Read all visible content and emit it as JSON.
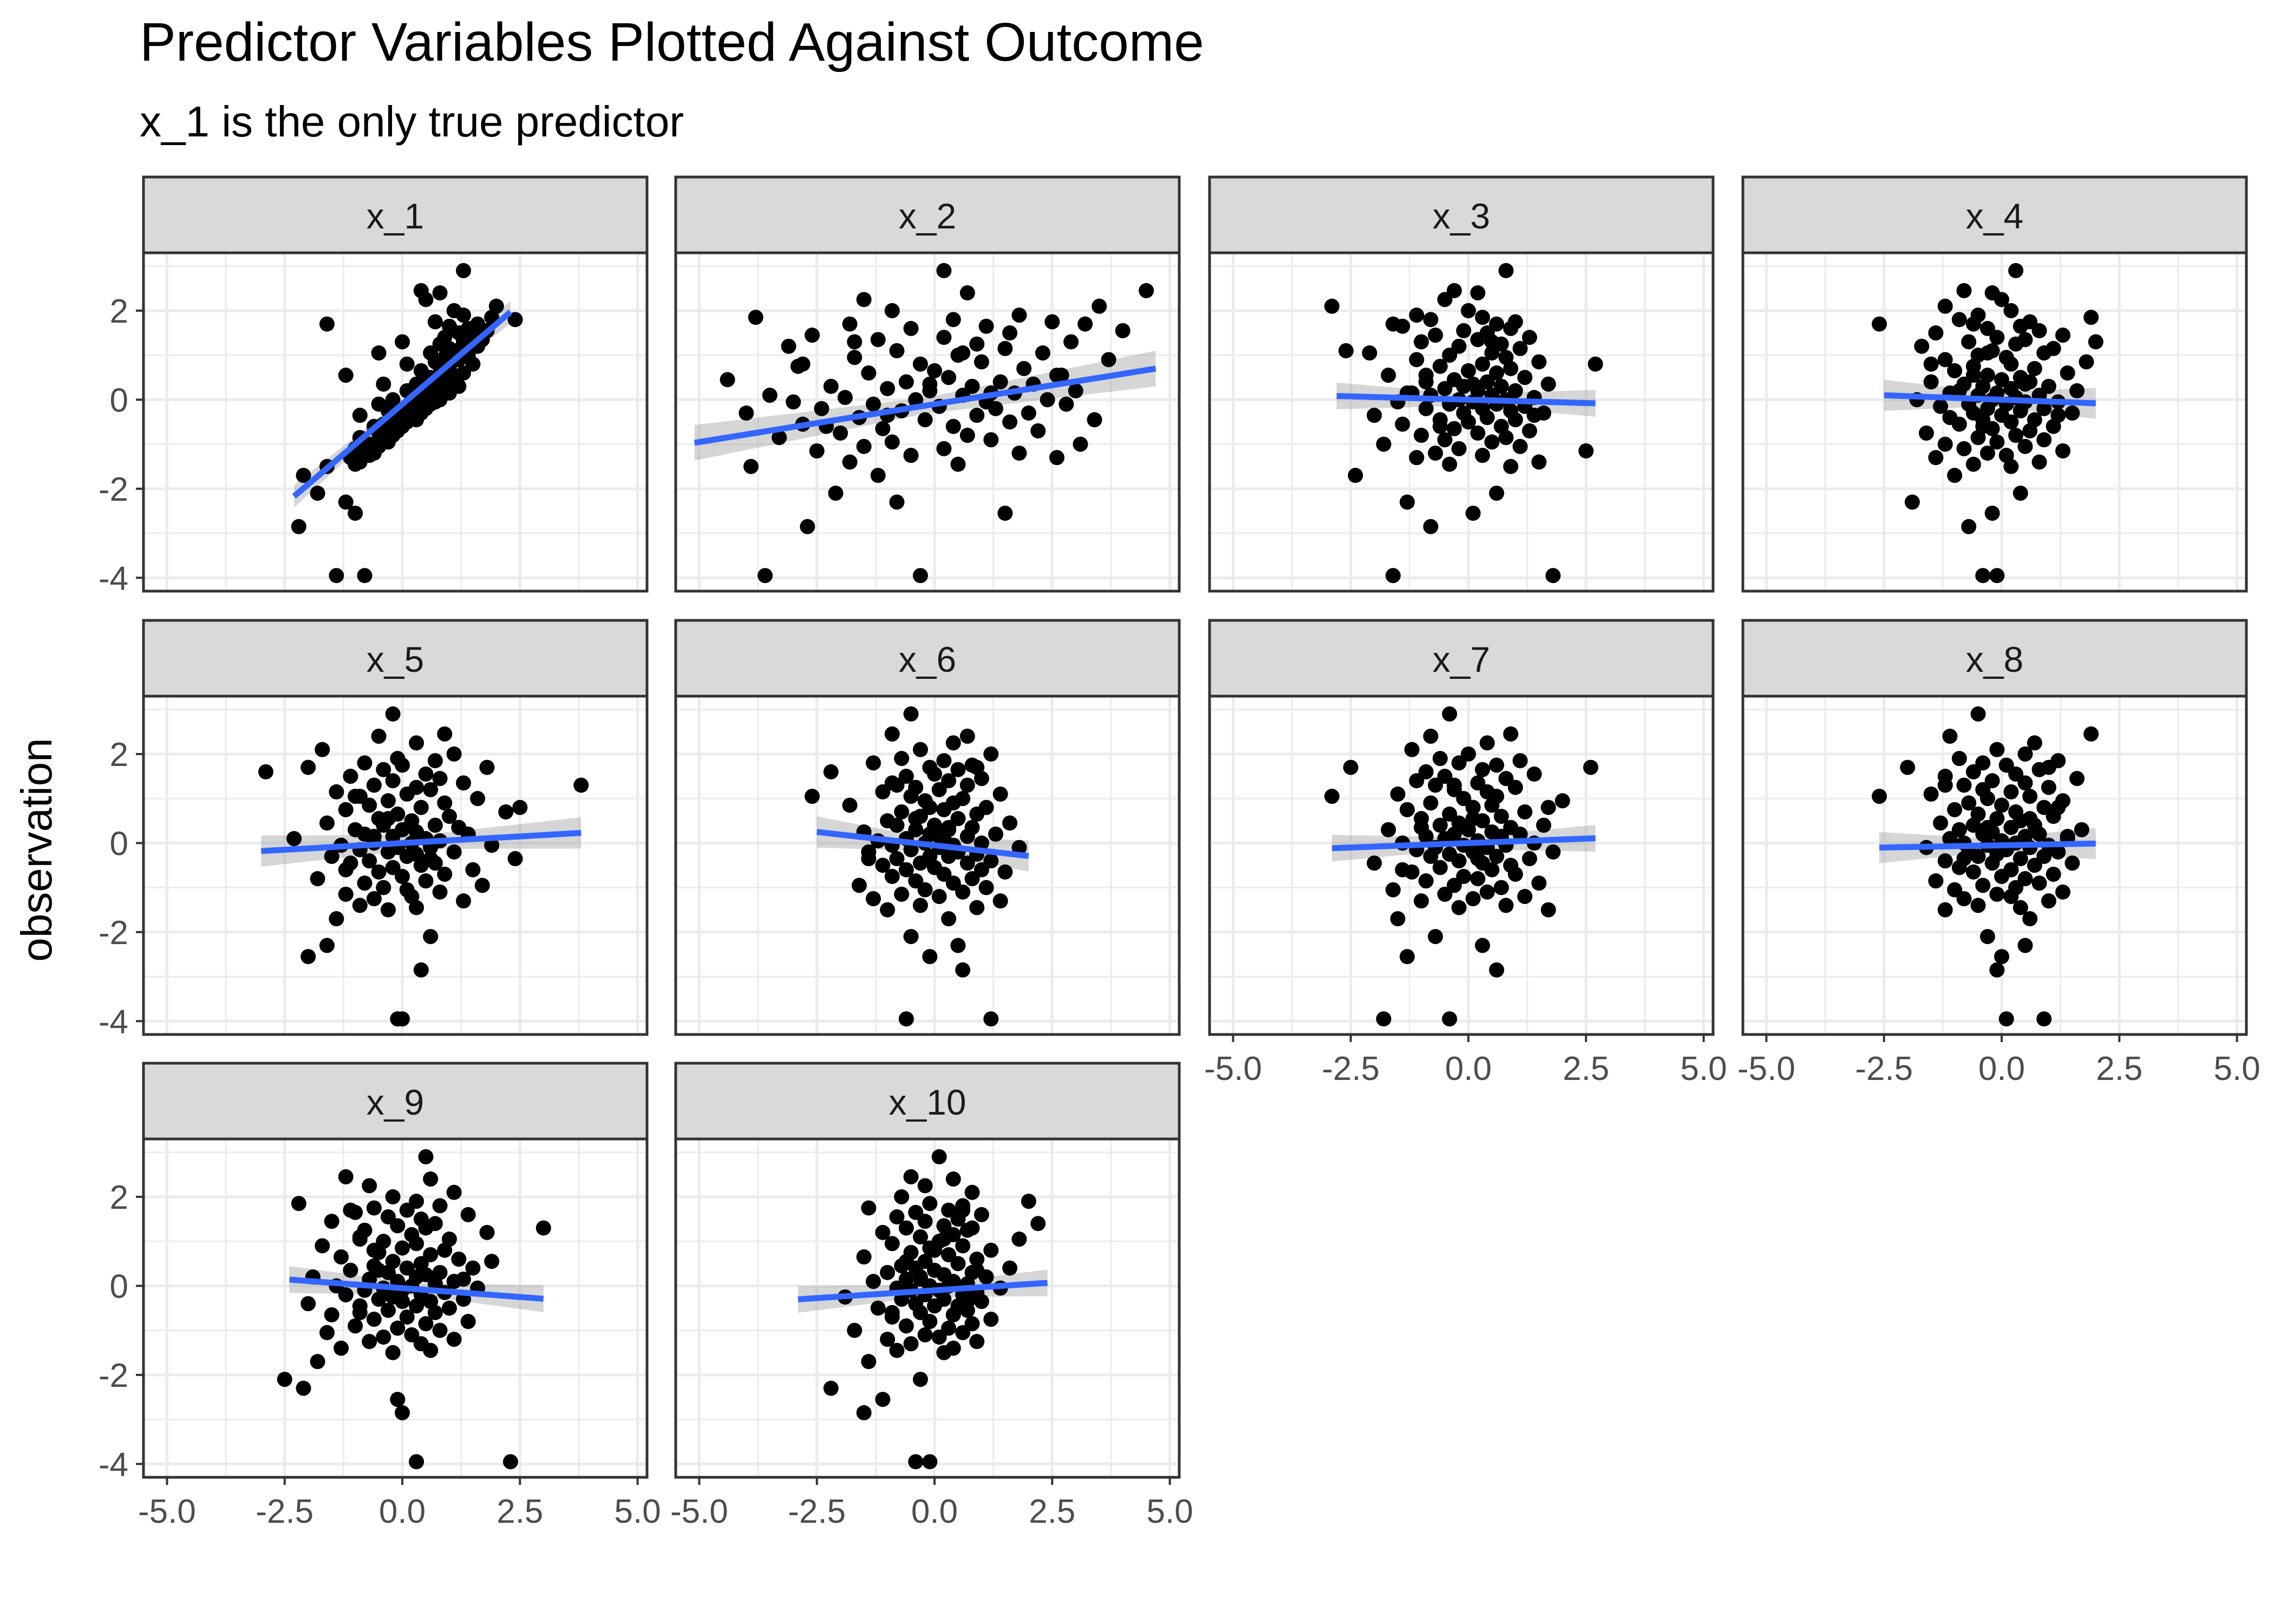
{
  "chart_data": {
    "type": "scatter",
    "title": "Predictor Variables Plotted Against Outcome",
    "subtitle": "x_1 is the only true predictor",
    "xlabel": "",
    "ylabel": "observation",
    "xlim": [
      -5.5,
      5.2
    ],
    "ylim": [
      -4.3,
      3.3
    ],
    "x_ticks": [
      -5.0,
      -2.5,
      0.0,
      2.5,
      5.0
    ],
    "x_tick_labels": [
      "-5.0",
      "-2.5",
      "0.0",
      "2.5",
      "5.0"
    ],
    "y_ticks": [
      2,
      0,
      -2,
      -4
    ],
    "y_tick_labels": [
      "2",
      "0",
      "-2",
      "-4"
    ],
    "grid": true,
    "colors": {
      "points": "#000000",
      "fit_line": "#3366FF",
      "ribbon": "#999999",
      "strip": "#D9D9D9",
      "panel_border": "#333333",
      "grid": "#EBEBEB"
    },
    "observations": [
      -3.95,
      -3.95,
      -2.85,
      -2.55,
      -2.3,
      -2.1,
      -1.7,
      -1.5,
      -1.45,
      -1.4,
      -1.3,
      -1.25,
      -1.2,
      -1.15,
      -1.1,
      -1.05,
      -1.0,
      -0.95,
      -0.9,
      -0.85,
      -0.8,
      -0.75,
      -0.7,
      -0.65,
      -0.6,
      -0.55,
      -0.5,
      -0.45,
      -0.45,
      -0.4,
      -0.35,
      -0.3,
      -0.3,
      -0.25,
      -0.2,
      -0.2,
      -0.15,
      -0.1,
      -0.1,
      -0.05,
      -0.05,
      0.0,
      0.0,
      0.05,
      0.1,
      0.1,
      0.15,
      0.2,
      0.2,
      0.25,
      0.3,
      0.3,
      0.35,
      0.4,
      0.4,
      0.45,
      0.5,
      0.55,
      0.6,
      0.65,
      0.7,
      0.75,
      0.8,
      0.85,
      0.9,
      0.95,
      1.0,
      1.05,
      1.1,
      1.15,
      1.2,
      1.25,
      1.3,
      1.35,
      1.4,
      1.45,
      1.5,
      1.55,
      1.6,
      1.65,
      1.7,
      1.75,
      1.8,
      1.85,
      1.9,
      2.0,
      2.1,
      2.25,
      2.4,
      2.45,
      2.9,
      -0.6,
      -0.35,
      0.15,
      0.35,
      0.55,
      0.8,
      1.05,
      1.3,
      1.7
    ],
    "panels": [
      {
        "name": "x_1",
        "slope": 0.9,
        "intercept": -0.1,
        "ribbon": 0.25,
        "x_range": [
          -2.3,
          2.3
        ],
        "xs": [
          -1.4,
          -0.8,
          -2.2,
          -1.0,
          -1.2,
          -1.8,
          -2.1,
          -1.6,
          -1.0,
          -0.9,
          -1.1,
          -0.7,
          -0.6,
          -0.8,
          -1.0,
          -0.5,
          -0.7,
          -0.3,
          -0.4,
          -0.9,
          -0.2,
          -0.5,
          -0.1,
          -0.3,
          0.0,
          -0.4,
          0.1,
          -0.2,
          0.3,
          0.2,
          -0.1,
          0.0,
          0.4,
          -0.3,
          0.5,
          0.2,
          0.1,
          0.6,
          -0.5,
          0.7,
          0.3,
          -0.2,
          0.8,
          0.4,
          0.2,
          0.5,
          1.0,
          0.1,
          0.6,
          0.9,
          0.4,
          1.2,
          0.3,
          0.7,
          0.5,
          1.1,
          0.6,
          0.9,
          1.3,
          0.4,
          1.0,
          0.8,
          1.5,
          0.7,
          1.2,
          0.9,
          1.4,
          0.6,
          1.1,
          1.0,
          1.6,
          0.8,
          1.3,
          1.7,
          0.9,
          1.5,
          1.2,
          1.8,
          1.4,
          1.0,
          1.6,
          0.7,
          2.4,
          1.9,
          1.3,
          1.1,
          2.0,
          0.5,
          0.8,
          0.4,
          1.3,
          -0.6,
          -0.9,
          0.3,
          -0.4,
          -1.2,
          0.1,
          -0.5,
          0.0,
          -1.6
        ]
      },
      {
        "name": "x_2",
        "slope": 0.17,
        "intercept": -0.1,
        "ribbon": 0.4,
        "x_range": [
          -5.1,
          4.7
        ],
        "xs": [
          -3.6,
          -0.3,
          -2.7,
          1.5,
          -0.8,
          -2.1,
          -1.2,
          -3.9,
          0.5,
          -1.8,
          2.6,
          -0.5,
          1.8,
          -2.5,
          0.2,
          -1.5,
          3.1,
          -0.9,
          1.2,
          -3.3,
          0.7,
          -2.0,
          2.2,
          -1.1,
          0.4,
          -2.8,
          1.6,
          -0.2,
          3.4,
          -1.6,
          0.9,
          -4.0,
          2.0,
          -0.7,
          1.3,
          -2.4,
          0.1,
          2.8,
          -1.3,
          -3.0,
          1.1,
          -0.4,
          2.4,
          -1.9,
          0.6,
          -3.5,
          1.7,
          -0.1,
          3.0,
          -1.0,
          0.8,
          -2.2,
          2.1,
          -0.6,
          1.4,
          -4.4,
          0.3,
          2.6,
          -1.4,
          0.0,
          1.9,
          -2.9,
          -0.3,
          1.0,
          3.7,
          -1.7,
          0.5,
          2.3,
          -0.8,
          1.5,
          -3.1,
          0.9,
          2.9,
          -1.2,
          0.2,
          -2.6,
          1.6,
          4.0,
          -0.5,
          1.1,
          -1.8,
          2.5,
          0.4,
          -3.8,
          1.8,
          -0.9,
          3.5,
          -1.5,
          0.7,
          4.5,
          0.2,
          -2.3,
          -1.0,
          1.2,
          -0.1,
          2.7,
          -2.8,
          0.6,
          -1.7,
          3.2
        ]
      },
      {
        "name": "x_3",
        "slope": -0.03,
        "intercept": 0.0,
        "ribbon": 0.3,
        "x_range": [
          -2.8,
          2.7
        ],
        "xs": [
          -1.6,
          1.8,
          -0.8,
          0.1,
          -1.3,
          0.6,
          -2.4,
          0.9,
          -0.4,
          1.5,
          -1.1,
          0.3,
          -0.7,
          2.5,
          -0.2,
          1.1,
          -1.8,
          0.5,
          -0.5,
          0.8,
          -1.0,
          0.2,
          1.3,
          -0.3,
          0.7,
          -1.4,
          0.0,
          1.0,
          -0.6,
          0.4,
          -2.0,
          1.6,
          -0.1,
          0.9,
          -0.9,
          0.3,
          1.2,
          -0.4,
          0.6,
          -1.5,
          0.1,
          0.8,
          -0.2,
          1.4,
          -0.8,
          0.5,
          -1.2,
          0.2,
          1.0,
          -0.5,
          0.7,
          -0.1,
          1.7,
          -0.9,
          0.4,
          -0.3,
          1.2,
          -1.7,
          0.6,
          0.0,
          0.9,
          -0.6,
          0.3,
          1.5,
          -1.1,
          0.8,
          -0.4,
          0.5,
          -2.6,
          1.1,
          -0.2,
          0.7,
          -1.0,
          0.2,
          1.3,
          -0.7,
          0.4,
          -0.1,
          0.9,
          -1.4,
          0.6,
          1.0,
          -0.8,
          0.3,
          -1.1,
          0.0,
          -2.9,
          -0.5,
          0.2,
          -0.3,
          0.8,
          -0.6,
          1.4,
          -1.3,
          0.1,
          -0.9,
          2.7,
          -2.1,
          0.5,
          -1.6
        ]
      },
      {
        "name": "x_4",
        "slope": -0.04,
        "intercept": 0.0,
        "ribbon": 0.35,
        "x_range": [
          -2.5,
          2.0
        ],
        "xs": [
          -0.4,
          -0.1,
          -0.7,
          -0.2,
          -1.9,
          0.4,
          -1.0,
          0.2,
          -0.6,
          0.8,
          -1.4,
          0.1,
          -0.3,
          1.3,
          -0.8,
          0.5,
          -1.2,
          -0.1,
          0.9,
          -0.5,
          0.3,
          -1.6,
          0.6,
          -0.2,
          1.1,
          -0.9,
          0.2,
          -0.4,
          0.7,
          -1.1,
          0.0,
          1.5,
          -0.6,
          0.4,
          -0.3,
          0.9,
          -1.3,
          0.1,
          -0.7,
          0.5,
          1.2,
          -0.2,
          -1.8,
          0.3,
          -0.5,
          0.8,
          -0.1,
          1.6,
          -0.9,
          0.2,
          -0.4,
          1.0,
          -0.8,
          0.6,
          -1.5,
          0.0,
          0.4,
          -0.3,
          1.4,
          -1.0,
          0.7,
          -0.6,
          0.2,
          1.8,
          -1.2,
          0.1,
          -0.5,
          0.9,
          -0.2,
          1.1,
          -1.7,
          0.3,
          -0.7,
          0.5,
          -0.1,
          1.3,
          -1.4,
          0.8,
          -0.3,
          0.4,
          -2.6,
          0.6,
          -0.9,
          1.9,
          -0.5,
          0.2,
          -1.2,
          0.0,
          -0.2,
          -0.8,
          0.3,
          -0.4,
          1.2,
          -1.1,
          0.5,
          -0.6,
          -1.5,
          -0.3,
          2.0,
          -0.6
        ]
      },
      {
        "name": "x_5",
        "slope": 0.06,
        "intercept": 0.0,
        "ribbon": 0.35,
        "x_range": [
          -3.0,
          3.8
        ],
        "xs": [
          -0.1,
          0.0,
          0.4,
          -2.0,
          -1.6,
          0.6,
          -1.4,
          -0.3,
          0.3,
          -0.9,
          1.3,
          -0.6,
          0.2,
          -1.2,
          0.8,
          0.1,
          -0.4,
          1.7,
          -0.8,
          0.5,
          -1.8,
          0.0,
          0.9,
          -0.5,
          1.5,
          -0.2,
          0.4,
          -1.1,
          0.7,
          -0.7,
          2.4,
          0.1,
          -1.5,
          0.3,
          -0.3,
          1.1,
          -0.9,
          0.6,
          -0.1,
          1.9,
          -1.3,
          0.2,
          -0.6,
          0.8,
          -2.3,
          0.5,
          -0.2,
          1.4,
          -0.8,
          0.3,
          -1.0,
          0.0,
          1.2,
          -0.4,
          0.7,
          -1.6,
          0.2,
          -0.5,
          1.0,
          -0.1,
          2.2,
          -1.2,
          0.4,
          -0.7,
          0.9,
          -0.3,
          1.6,
          -0.9,
          0.1,
          -1.4,
          0.6,
          0.3,
          -0.6,
          1.3,
          -0.2,
          0.8,
          -1.1,
          0.5,
          -2.9,
          -0.4,
          1.8,
          0.0,
          -0.8,
          0.7,
          -0.1,
          1.1,
          -1.7,
          0.3,
          -0.5,
          0.9,
          -0.2,
          -1.2,
          0.6,
          -0.6,
          1.2,
          -0.3,
          2.5,
          -1.0,
          3.8,
          -2.0
        ]
      },
      {
        "name": "x_6",
        "slope": -0.12,
        "intercept": -0.05,
        "ribbon": 0.35,
        "x_range": [
          -2.5,
          2.0
        ],
        "xs": [
          -0.6,
          1.2,
          0.6,
          -0.1,
          0.5,
          -0.5,
          0.3,
          -1.0,
          0.9,
          -0.3,
          1.4,
          -1.3,
          0.1,
          -0.7,
          0.6,
          -0.2,
          1.1,
          -1.6,
          0.4,
          -0.4,
          0.8,
          -0.9,
          0.2,
          1.5,
          -0.6,
          0.0,
          -1.1,
          0.7,
          -0.3,
          1.2,
          -0.8,
          0.3,
          -0.1,
          0.9,
          -1.4,
          0.5,
          -0.5,
          0.1,
          1.8,
          -0.9,
          0.4,
          -0.2,
          1.0,
          -1.2,
          0.2,
          -0.6,
          0.7,
          -0.1,
          1.3,
          -1.5,
          0.3,
          -0.4,
          0.8,
          -0.8,
          0.0,
          1.6,
          -1.0,
          0.5,
          -0.3,
          0.9,
          -0.7,
          0.2,
          1.1,
          -1.8,
          0.4,
          -0.2,
          0.6,
          -0.5,
          1.4,
          -1.1,
          0.1,
          -0.4,
          0.7,
          -0.9,
          0.3,
          1.0,
          -0.6,
          0.0,
          -2.2,
          0.5,
          -0.1,
          0.8,
          -1.3,
          0.2,
          -0.7,
          1.2,
          -0.3,
          0.4,
          0.7,
          -0.9,
          -0.5,
          1.0,
          -1.4,
          0.1,
          0.3,
          -0.4,
          -0.1,
          -2.6,
          -0.8,
          0.9
        ]
      },
      {
        "name": "x_7",
        "slope": 0.04,
        "intercept": 0.0,
        "ribbon": 0.3,
        "x_range": [
          -2.9,
          2.7
        ],
        "xs": [
          -1.8,
          -0.4,
          0.6,
          -1.3,
          0.3,
          -0.7,
          -1.5,
          1.7,
          -0.2,
          0.8,
          -1.0,
          0.1,
          1.2,
          -0.5,
          0.4,
          -1.6,
          0.7,
          -0.3,
          1.5,
          -0.9,
          0.2,
          -0.1,
          1.0,
          -1.2,
          0.5,
          -0.6,
          0.9,
          -2.0,
          0.3,
          -0.2,
          1.3,
          -0.8,
          0.6,
          -0.4,
          0.1,
          1.8,
          -1.1,
          0.4,
          -0.7,
          0.8,
          -0.1,
          1.4,
          -1.4,
          0.2,
          -0.5,
          0.7,
          -0.9,
          1.1,
          -0.3,
          0.5,
          -1.7,
          0.0,
          0.9,
          -0.6,
          1.6,
          -0.2,
          0.3,
          -1.0,
          0.7,
          -0.4,
          1.2,
          -1.3,
          0.1,
          0.5,
          -0.8,
          2.0,
          -0.1,
          0.6,
          -1.5,
          0.4,
          -0.3,
          1.0,
          -0.7,
          0.2,
          -1.1,
          0.8,
          -0.5,
          1.4,
          -0.9,
          0.3,
          -2.5,
          0.6,
          -0.2,
          1.1,
          -0.6,
          0.0,
          -1.2,
          0.4,
          -0.8,
          0.9,
          -0.4,
          -1.4,
          0.2,
          0.7,
          -1.0,
          0.1,
          1.7,
          -2.9,
          -0.3,
          2.6
        ]
      },
      {
        "name": "x_8",
        "slope": 0.02,
        "intercept": -0.05,
        "ribbon": 0.35,
        "x_range": [
          -2.6,
          2.0
        ],
        "xs": [
          0.9,
          0.1,
          -0.1,
          0.0,
          0.5,
          -0.3,
          0.6,
          -1.2,
          0.4,
          -0.5,
          1.0,
          -0.8,
          0.2,
          -0.1,
          1.3,
          -1.0,
          0.3,
          -0.4,
          0.8,
          -1.4,
          0.5,
          0.0,
          1.1,
          -0.6,
          0.2,
          -0.9,
          0.7,
          -0.2,
          1.5,
          -1.2,
          0.4,
          -0.5,
          0.9,
          -0.1,
          1.2,
          -0.7,
          0.1,
          -1.6,
          0.6,
          -0.3,
          1.0,
          -0.8,
          0.3,
          0.0,
          1.4,
          -1.1,
          0.5,
          -0.4,
          0.8,
          -0.2,
          1.7,
          -0.9,
          0.2,
          -0.6,
          0.7,
          -1.3,
          0.4,
          -0.1,
          1.1,
          -0.5,
          0.3,
          -1.0,
          0.9,
          0.0,
          -0.7,
          1.3,
          -0.3,
          0.6,
          -1.5,
          0.2,
          -0.4,
          1.0,
          -0.8,
          0.5,
          -0.2,
          1.6,
          -1.2,
          0.3,
          -0.6,
          0.8,
          -2.0,
          0.1,
          -0.4,
          1.2,
          -0.9,
          0.5,
          -0.1,
          0.7,
          -1.1,
          1.9,
          -0.5,
          0.2,
          -0.8,
          1.4,
          -0.3,
          0.6,
          1.2,
          -2.6,
          -1.2,
          1.0
        ]
      },
      {
        "name": "x_9",
        "slope": -0.08,
        "intercept": -0.05,
        "ribbon": 0.3,
        "x_range": [
          -2.4,
          3.0
        ],
        "xs": [
          0.3,
          2.3,
          0.0,
          -0.1,
          -2.1,
          -2.5,
          -1.8,
          -0.2,
          0.6,
          -1.3,
          0.4,
          -0.7,
          1.1,
          -0.4,
          0.2,
          -1.6,
          0.8,
          -0.1,
          -1.0,
          0.5,
          1.4,
          -0.6,
          0.1,
          -1.5,
          0.7,
          -0.3,
          1.0,
          -0.9,
          0.3,
          -2.0,
          0.6,
          -0.5,
          1.3,
          -0.2,
          0.4,
          -1.2,
          0.9,
          0.0,
          -0.8,
          1.6,
          -0.4,
          0.2,
          -1.4,
          0.7,
          -0.1,
          1.1,
          -0.7,
          0.3,
          -1.9,
          0.5,
          -0.3,
          0.8,
          -1.1,
          0.1,
          1.5,
          -0.6,
          0.4,
          -0.2,
          1.2,
          -1.3,
          0.6,
          -0.5,
          0.9,
          0.0,
          -1.7,
          0.3,
          -0.4,
          1.0,
          -0.9,
          0.2,
          1.8,
          -0.8,
          0.5,
          -0.1,
          0.7,
          -1.5,
          0.4,
          -0.3,
          1.4,
          -1.0,
          0.1,
          -0.6,
          0.8,
          -2.2,
          0.3,
          -0.2,
          1.1,
          -0.7,
          0.6,
          -1.2,
          0.5,
          -0.9,
          0.0,
          1.3,
          -0.5,
          1.9,
          -0.6,
          -0.9,
          3.0,
          -1.1
        ]
      },
      {
        "name": "x_10",
        "slope": 0.07,
        "intercept": -0.1,
        "ribbon": 0.3,
        "x_range": [
          -2.9,
          2.4
        ],
        "xs": [
          -0.4,
          -0.1,
          -1.5,
          -1.1,
          -2.2,
          -0.3,
          -1.4,
          0.2,
          -0.8,
          0.4,
          -0.5,
          0.9,
          -1.0,
          0.1,
          -0.2,
          0.6,
          -1.7,
          0.3,
          -0.6,
          0.8,
          -0.1,
          1.2,
          -0.9,
          0.4,
          -0.3,
          0.7,
          -1.2,
          0.0,
          0.5,
          -0.4,
          1.0,
          -0.7,
          0.2,
          -1.9,
          0.6,
          -0.2,
          0.9,
          -0.5,
          0.1,
          1.4,
          -0.8,
          0.3,
          -0.1,
          0.7,
          -1.3,
          0.4,
          -0.6,
          1.1,
          -0.3,
          0.2,
          -1.0,
          0.8,
          0.0,
          -0.4,
          1.6,
          -0.7,
          0.5,
          -0.2,
          0.9,
          -1.5,
          0.3,
          -0.5,
          1.2,
          -0.1,
          0.6,
          -0.9,
          0.1,
          1.8,
          -0.3,
          0.4,
          -1.1,
          0.7,
          -0.6,
          0.2,
          2.2,
          -0.2,
          0.5,
          -0.8,
          1.0,
          -0.4,
          0.3,
          -1.4,
          0.6,
          -0.1,
          2.0,
          -0.7,
          0.8,
          -0.2,
          0.4,
          -0.5,
          0.1,
          -0.9,
          0.7,
          -0.3,
          0.9,
          -0.6,
          0.0,
          0.2,
          0.8,
          0.6
        ]
      }
    ]
  }
}
